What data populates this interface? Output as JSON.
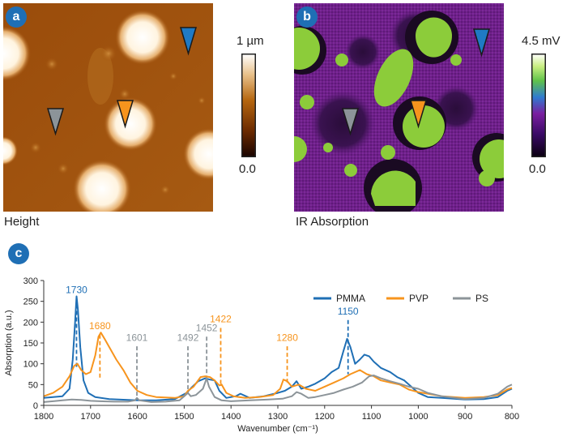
{
  "panels": {
    "a": {
      "badge": "a",
      "caption": "Height",
      "colorbar_max": "1 µm",
      "colorbar_min": "0.0",
      "colorbar_colors": [
        "#1a0400",
        "#6b2a00",
        "#b5660f",
        "#e8c08a",
        "#ffffff"
      ]
    },
    "b": {
      "badge": "b",
      "caption": "IR Absorption",
      "colorbar_max": "4.5 mV",
      "colorbar_min": "0.0",
      "colorbar_colors": [
        "#0a0010",
        "#3a0a66",
        "#7a1fa0",
        "#2f7bd0",
        "#5fc24a",
        "#c8ee80",
        "#ffffff"
      ]
    },
    "c": {
      "badge": "c"
    }
  },
  "marker_colors": {
    "blue": "#1f7ac4",
    "orange": "#f7941d",
    "gray": "#8c9499"
  },
  "chart_data": {
    "type": "line",
    "xlabel": "Wavenumber (cm⁻¹)",
    "ylabel": "Absorption (a.u.)",
    "xlim": [
      1800,
      800
    ],
    "ylim": [
      0,
      300
    ],
    "x_ticks": [
      1800,
      1700,
      1600,
      1500,
      1400,
      1300,
      1200,
      1100,
      1000,
      900,
      800
    ],
    "y_ticks": [
      0,
      50,
      100,
      150,
      200,
      250,
      300
    ],
    "legend_position": "top-right",
    "series": [
      {
        "name": "PMMA",
        "color": "#1f6fb5",
        "points": [
          [
            1800,
            18
          ],
          [
            1780,
            20
          ],
          [
            1760,
            22
          ],
          [
            1745,
            40
          ],
          [
            1738,
            110
          ],
          [
            1733,
            200
          ],
          [
            1730,
            262
          ],
          [
            1727,
            230
          ],
          [
            1722,
            140
          ],
          [
            1715,
            60
          ],
          [
            1705,
            30
          ],
          [
            1690,
            20
          ],
          [
            1660,
            15
          ],
          [
            1620,
            13
          ],
          [
            1600,
            12
          ],
          [
            1560,
            12
          ],
          [
            1520,
            15
          ],
          [
            1495,
            30
          ],
          [
            1485,
            42
          ],
          [
            1470,
            58
          ],
          [
            1455,
            65
          ],
          [
            1445,
            62
          ],
          [
            1435,
            60
          ],
          [
            1425,
            35
          ],
          [
            1410,
            18
          ],
          [
            1390,
            22
          ],
          [
            1380,
            28
          ],
          [
            1360,
            18
          ],
          [
            1330,
            22
          ],
          [
            1300,
            30
          ],
          [
            1285,
            35
          ],
          [
            1270,
            45
          ],
          [
            1260,
            58
          ],
          [
            1250,
            40
          ],
          [
            1235,
            45
          ],
          [
            1220,
            52
          ],
          [
            1200,
            65
          ],
          [
            1185,
            80
          ],
          [
            1170,
            90
          ],
          [
            1160,
            130
          ],
          [
            1152,
            160
          ],
          [
            1145,
            140
          ],
          [
            1135,
            100
          ],
          [
            1125,
            110
          ],
          [
            1115,
            122
          ],
          [
            1105,
            118
          ],
          [
            1095,
            105
          ],
          [
            1080,
            90
          ],
          [
            1060,
            80
          ],
          [
            1045,
            68
          ],
          [
            1030,
            60
          ],
          [
            1015,
            45
          ],
          [
            1000,
            30
          ],
          [
            980,
            20
          ],
          [
            950,
            18
          ],
          [
            900,
            14
          ],
          [
            860,
            15
          ],
          [
            830,
            20
          ],
          [
            810,
            35
          ],
          [
            800,
            40
          ]
        ]
      },
      {
        "name": "PVP",
        "color": "#f7941d",
        "points": [
          [
            1800,
            22
          ],
          [
            1780,
            30
          ],
          [
            1760,
            45
          ],
          [
            1745,
            70
          ],
          [
            1735,
            95
          ],
          [
            1728,
            100
          ],
          [
            1720,
            85
          ],
          [
            1710,
            75
          ],
          [
            1700,
            80
          ],
          [
            1690,
            120
          ],
          [
            1683,
            165
          ],
          [
            1678,
            175
          ],
          [
            1670,
            160
          ],
          [
            1660,
            140
          ],
          [
            1645,
            110
          ],
          [
            1630,
            85
          ],
          [
            1615,
            55
          ],
          [
            1600,
            35
          ],
          [
            1580,
            25
          ],
          [
            1560,
            20
          ],
          [
            1520,
            18
          ],
          [
            1500,
            22
          ],
          [
            1492,
            35
          ],
          [
            1480,
            45
          ],
          [
            1465,
            68
          ],
          [
            1455,
            70
          ],
          [
            1445,
            68
          ],
          [
            1435,
            60
          ],
          [
            1425,
            48
          ],
          [
            1420,
            50
          ],
          [
            1410,
            30
          ],
          [
            1395,
            22
          ],
          [
            1370,
            18
          ],
          [
            1340,
            20
          ],
          [
            1310,
            25
          ],
          [
            1295,
            40
          ],
          [
            1288,
            62
          ],
          [
            1280,
            58
          ],
          [
            1270,
            45
          ],
          [
            1255,
            50
          ],
          [
            1240,
            40
          ],
          [
            1220,
            35
          ],
          [
            1200,
            45
          ],
          [
            1180,
            55
          ],
          [
            1160,
            65
          ],
          [
            1145,
            75
          ],
          [
            1125,
            85
          ],
          [
            1110,
            75
          ],
          [
            1095,
            70
          ],
          [
            1080,
            60
          ],
          [
            1060,
            55
          ],
          [
            1040,
            50
          ],
          [
            1020,
            38
          ],
          [
            1000,
            32
          ],
          [
            980,
            28
          ],
          [
            950,
            22
          ],
          [
            900,
            18
          ],
          [
            860,
            20
          ],
          [
            830,
            25
          ],
          [
            810,
            38
          ],
          [
            800,
            42
          ]
        ]
      },
      {
        "name": "PS",
        "color": "#8c9499",
        "points": [
          [
            1800,
            8
          ],
          [
            1780,
            10
          ],
          [
            1760,
            12
          ],
          [
            1740,
            14
          ],
          [
            1720,
            13
          ],
          [
            1700,
            11
          ],
          [
            1680,
            10
          ],
          [
            1650,
            9
          ],
          [
            1620,
            9
          ],
          [
            1605,
            12
          ],
          [
            1601,
            18
          ],
          [
            1596,
            12
          ],
          [
            1570,
            8
          ],
          [
            1540,
            9
          ],
          [
            1510,
            12
          ],
          [
            1500,
            22
          ],
          [
            1492,
            30
          ],
          [
            1486,
            22
          ],
          [
            1475,
            25
          ],
          [
            1460,
            40
          ],
          [
            1452,
            65
          ],
          [
            1447,
            45
          ],
          [
            1435,
            20
          ],
          [
            1420,
            12
          ],
          [
            1400,
            10
          ],
          [
            1360,
            12
          ],
          [
            1320,
            14
          ],
          [
            1290,
            16
          ],
          [
            1270,
            22
          ],
          [
            1260,
            32
          ],
          [
            1250,
            28
          ],
          [
            1235,
            18
          ],
          [
            1220,
            20
          ],
          [
            1200,
            25
          ],
          [
            1180,
            30
          ],
          [
            1160,
            38
          ],
          [
            1140,
            45
          ],
          [
            1120,
            55
          ],
          [
            1105,
            70
          ],
          [
            1095,
            72
          ],
          [
            1080,
            65
          ],
          [
            1060,
            58
          ],
          [
            1040,
            52
          ],
          [
            1020,
            45
          ],
          [
            1000,
            40
          ],
          [
            980,
            30
          ],
          [
            950,
            22
          ],
          [
            900,
            15
          ],
          [
            860,
            18
          ],
          [
            830,
            28
          ],
          [
            810,
            45
          ],
          [
            800,
            50
          ]
        ]
      }
    ],
    "annotations": [
      {
        "label": "1730",
        "x": 1730,
        "color": "#1f6fb5",
        "text_y": 270,
        "y_top": 258,
        "y_bottom": 92
      },
      {
        "label": "1680",
        "x": 1680,
        "color": "#f7941d",
        "text_y": 183,
        "y_top": 170,
        "y_bottom": 65
      },
      {
        "label": "1601",
        "x": 1601,
        "color": "#8c9499",
        "text_y": 155,
        "y_top": 142,
        "y_bottom": 12
      },
      {
        "label": "1492",
        "x": 1492,
        "color": "#8c9499",
        "text_y": 155,
        "y_top": 142,
        "y_bottom": 30
      },
      {
        "label": "1452",
        "x": 1452,
        "color": "#8c9499",
        "text_y": 178,
        "y_top": 165,
        "y_bottom": 62
      },
      {
        "label": "1422",
        "x": 1422,
        "color": "#f7941d",
        "text_y": 200,
        "y_top": 186,
        "y_bottom": 48
      },
      {
        "label": "1280",
        "x": 1280,
        "color": "#f7941d",
        "text_y": 155,
        "y_top": 142,
        "y_bottom": 55
      },
      {
        "label": "1150",
        "x": 1150,
        "color": "#1f6fb5",
        "text_y": 218,
        "y_top": 205,
        "y_bottom": 75
      }
    ]
  }
}
